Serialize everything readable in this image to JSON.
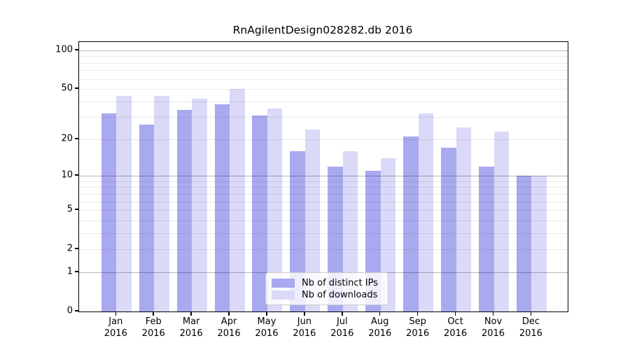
{
  "title": "RnAgilentDesign028282.db 2016",
  "colors": {
    "background": "#ffffff",
    "axis": "#000000",
    "distinct_ips": "#a9a9f0",
    "downloads": "#dadaf8"
  },
  "chart_data": {
    "type": "bar",
    "title": "RnAgilentDesign028282.db 2016",
    "categories": [
      "Jan 2016",
      "Feb 2016",
      "Mar 2016",
      "Apr 2016",
      "May 2016",
      "Jun 2016",
      "Jul 2016",
      "Aug 2016",
      "Sep 2016",
      "Oct 2016",
      "Nov 2016",
      "Dec 2016"
    ],
    "series": [
      {
        "name": "Nb of distinct IPs",
        "color": "#a9a9f0",
        "values": [
          32,
          26,
          34,
          38,
          31,
          16,
          12,
          11,
          21,
          17,
          12,
          10
        ]
      },
      {
        "name": "Nb of downloads",
        "color": "#dadaf8",
        "values": [
          44,
          44,
          42,
          50,
          35,
          24,
          16,
          14,
          32,
          25,
          23,
          10
        ]
      }
    ],
    "xlabel": "",
    "ylabel": "",
    "yscale": "log1p",
    "ylim": [
      0,
      115
    ],
    "y_ticks": [
      0,
      1,
      2,
      5,
      10,
      20,
      50,
      100
    ],
    "y_major_gridlines": [
      1,
      10,
      100
    ],
    "y_minor_gridlines": [
      2,
      3,
      4,
      5,
      6,
      7,
      8,
      9,
      20,
      30,
      40,
      50,
      60,
      70,
      80,
      90
    ],
    "grid": "on, drawn above bars",
    "legend_position": "inside-bottom-center"
  }
}
